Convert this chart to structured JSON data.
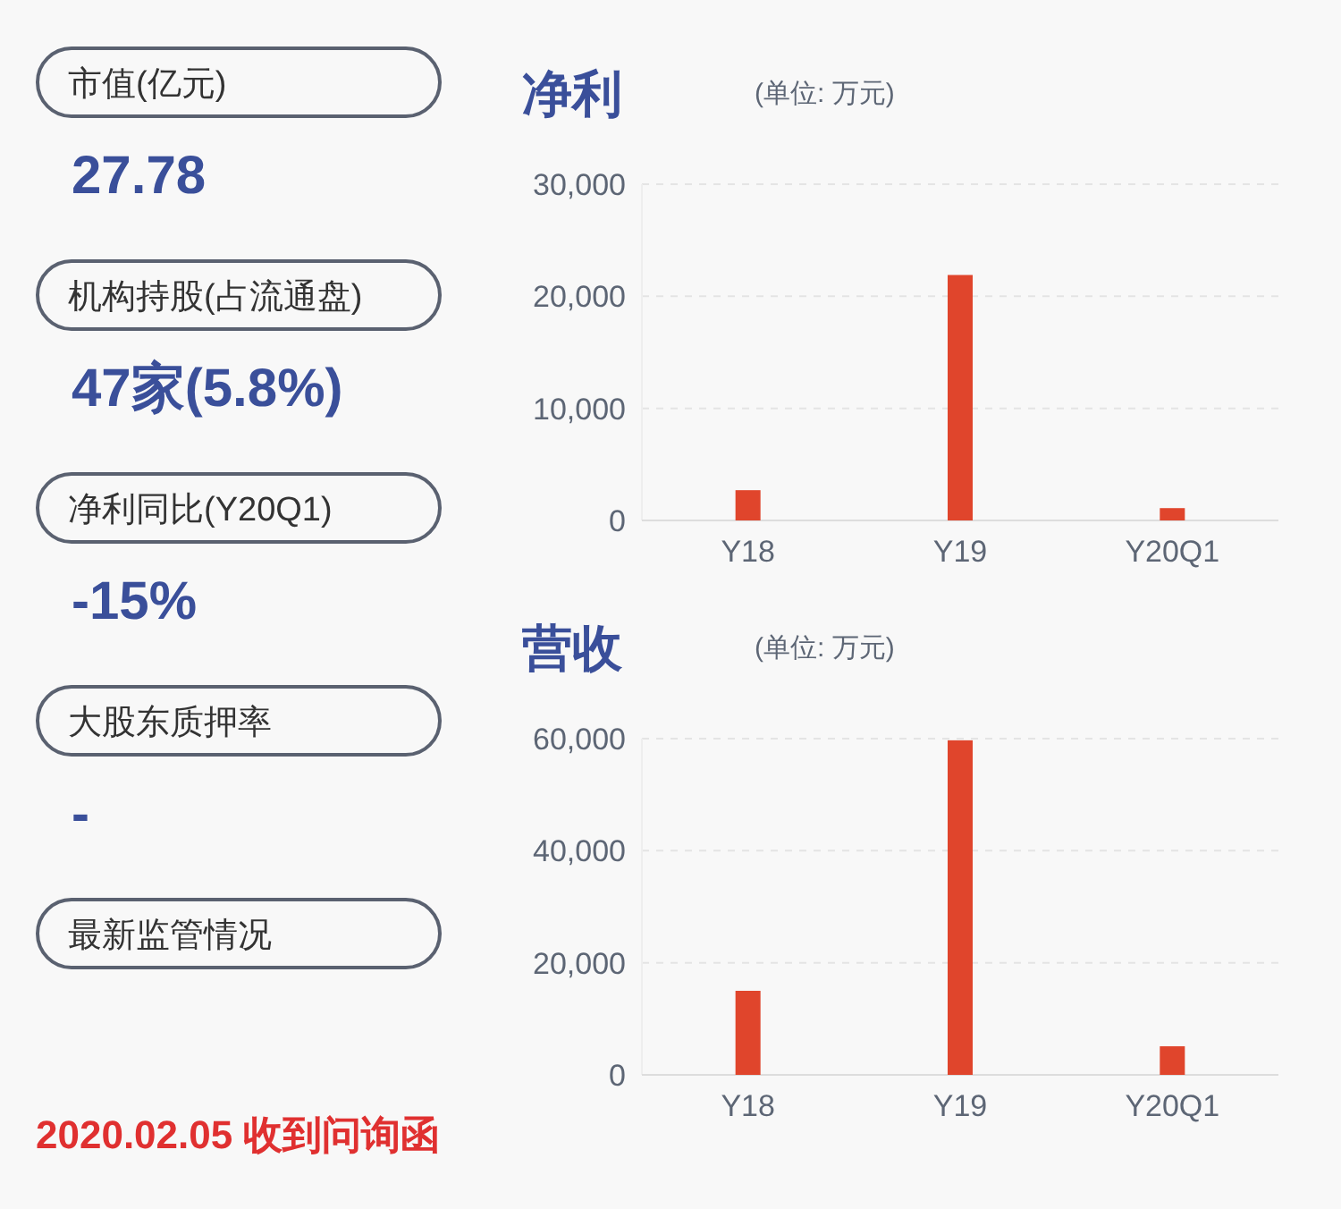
{
  "chart_data": [
    {
      "type": "other",
      "annotations": [
        "市值(亿元)",
        "27.78",
        "机构持股(占流通盘)",
        "47家(5.8%)",
        "净利同比(Y20Q1)",
        "-15%",
        "大股东质押率",
        "-",
        "最新监管情况",
        "2020.02.05 收到问询函"
      ]
    },
    {
      "type": "bar",
      "title": "净利",
      "subtitle": "(单位: 万元)",
      "categories": [
        "Y18",
        "Y19",
        "Y20Q1"
      ],
      "values": [
        2700,
        21900,
        1100
      ],
      "color": "#e0452c",
      "ylim": [
        0,
        30000
      ],
      "yticks": [
        {
          "value": 0,
          "label": "0"
        },
        {
          "value": 10000,
          "label": "10,000"
        },
        {
          "value": 20000,
          "label": "20,000"
        },
        {
          "value": 30000,
          "label": "30,000"
        }
      ],
      "grid": "y"
    },
    {
      "type": "bar",
      "title": "营收",
      "subtitle": "(单位: 万元)",
      "categories": [
        "Y18",
        "Y19",
        "Y20Q1"
      ],
      "values": [
        15000,
        59700,
        5100
      ],
      "color": "#e0452c",
      "ylim": [
        0,
        60000
      ],
      "yticks": [
        {
          "value": 0,
          "label": "0"
        },
        {
          "value": 20000,
          "label": "20,000"
        },
        {
          "value": 40000,
          "label": "40,000"
        },
        {
          "value": 60000,
          "label": "60,000"
        }
      ],
      "grid": "y"
    }
  ]
}
